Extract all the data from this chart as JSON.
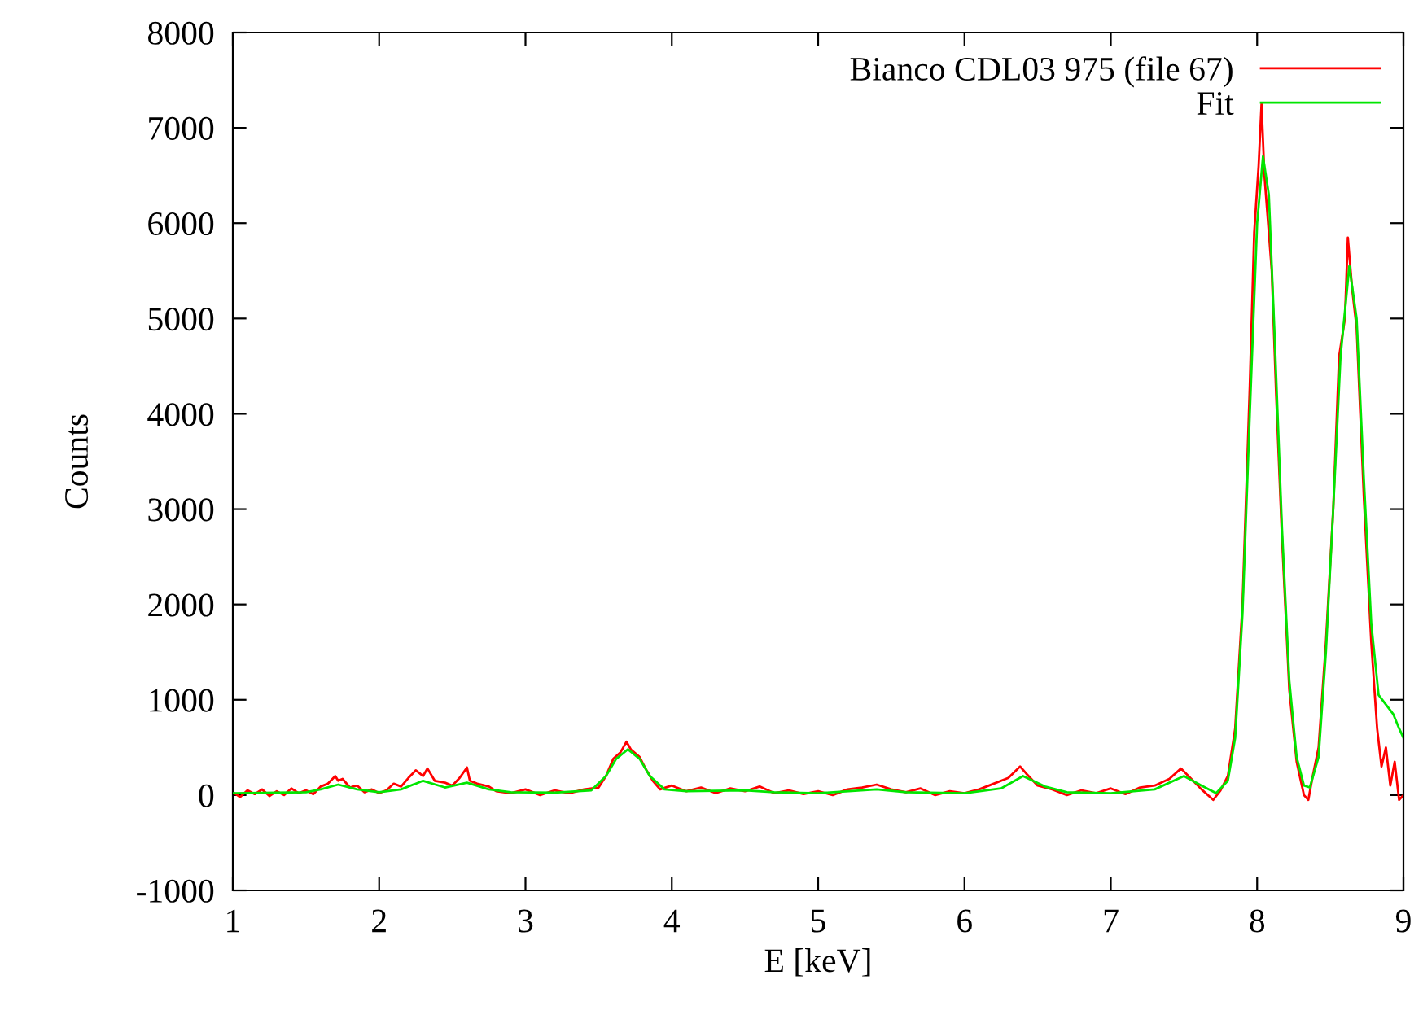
{
  "chart_data": {
    "type": "line",
    "xlabel": "E [keV]",
    "ylabel": "Counts",
    "xlim": [
      1,
      9
    ],
    "ylim": [
      -1000,
      8000
    ],
    "xticks": [
      1,
      2,
      3,
      4,
      5,
      6,
      7,
      8,
      9
    ],
    "yticks": [
      -1000,
      0,
      1000,
      2000,
      3000,
      4000,
      5000,
      6000,
      7000,
      8000
    ],
    "legend": "top right",
    "series": [
      {
        "name": "Bianco CDL03 975 (file 67)",
        "color": "#ff0000",
        "x": [
          1.0,
          1.05,
          1.1,
          1.15,
          1.2,
          1.25,
          1.3,
          1.35,
          1.4,
          1.45,
          1.5,
          1.55,
          1.6,
          1.65,
          1.7,
          1.72,
          1.75,
          1.8,
          1.85,
          1.9,
          1.95,
          2.0,
          2.05,
          2.1,
          2.15,
          2.2,
          2.25,
          2.3,
          2.33,
          2.38,
          2.45,
          2.5,
          2.55,
          2.6,
          2.62,
          2.67,
          2.75,
          2.8,
          2.9,
          3.0,
          3.1,
          3.2,
          3.3,
          3.4,
          3.5,
          3.55,
          3.6,
          3.65,
          3.69,
          3.72,
          3.78,
          3.82,
          3.87,
          3.92,
          4.0,
          4.1,
          4.2,
          4.3,
          4.4,
          4.5,
          4.6,
          4.7,
          4.8,
          4.9,
          5.0,
          5.1,
          5.2,
          5.3,
          5.4,
          5.5,
          5.6,
          5.7,
          5.8,
          5.9,
          6.0,
          6.1,
          6.2,
          6.3,
          6.38,
          6.42,
          6.5,
          6.6,
          6.7,
          6.8,
          6.9,
          7.0,
          7.1,
          7.2,
          7.3,
          7.4,
          7.48,
          7.55,
          7.62,
          7.7,
          7.75,
          7.8,
          7.85,
          7.9,
          7.95,
          7.98,
          8.01,
          8.03,
          8.05,
          8.07,
          8.1,
          8.13,
          8.17,
          8.22,
          8.27,
          8.32,
          8.35,
          8.38,
          8.42,
          8.47,
          8.52,
          8.56,
          8.6,
          8.62,
          8.65,
          8.68,
          8.73,
          8.78,
          8.82,
          8.85,
          8.88,
          8.91,
          8.94,
          8.97,
          9.0
        ],
        "values": [
          30,
          -20,
          50,
          10,
          60,
          -10,
          40,
          0,
          70,
          20,
          50,
          10,
          90,
          120,
          200,
          150,
          170,
          80,
          100,
          30,
          60,
          20,
          50,
          120,
          90,
          180,
          260,
          200,
          280,
          150,
          130,
          100,
          180,
          290,
          150,
          120,
          90,
          40,
          20,
          60,
          0,
          50,
          20,
          60,
          80,
          200,
          380,
          450,
          560,
          480,
          400,
          280,
          150,
          60,
          100,
          40,
          80,
          20,
          70,
          40,
          90,
          20,
          50,
          10,
          40,
          0,
          60,
          80,
          110,
          60,
          30,
          70,
          0,
          40,
          20,
          60,
          120,
          180,
          300,
          230,
          100,
          60,
          0,
          50,
          20,
          70,
          10,
          80,
          100,
          170,
          280,
          170,
          60,
          -50,
          50,
          200,
          700,
          2000,
          4300,
          5900,
          6600,
          7250,
          6500,
          6100,
          5500,
          4200,
          2700,
          1100,
          350,
          0,
          -50,
          200,
          500,
          1600,
          3000,
          4600,
          5000,
          5850,
          5300,
          4900,
          3100,
          1600,
          700,
          300,
          500,
          100,
          350,
          -50,
          0
        ]
      },
      {
        "name": "Fit",
        "color": "#00e600",
        "x": [
          1.0,
          1.5,
          1.6,
          1.72,
          1.85,
          2.0,
          2.15,
          2.3,
          2.45,
          2.6,
          2.75,
          2.9,
          3.2,
          3.45,
          3.55,
          3.62,
          3.7,
          3.78,
          3.85,
          3.95,
          4.1,
          4.5,
          4.7,
          5.0,
          5.4,
          5.6,
          6.0,
          6.25,
          6.4,
          6.55,
          6.7,
          7.0,
          7.3,
          7.5,
          7.62,
          7.72,
          7.8,
          7.85,
          7.9,
          7.95,
          8.0,
          8.04,
          8.08,
          8.12,
          8.17,
          8.22,
          8.27,
          8.32,
          8.36,
          8.42,
          8.47,
          8.52,
          8.57,
          8.63,
          8.68,
          8.73,
          8.78,
          8.83,
          8.88,
          8.93,
          8.97,
          9.0
        ],
        "values": [
          20,
          30,
          60,
          110,
          60,
          30,
          60,
          150,
          80,
          130,
          60,
          30,
          25,
          50,
          200,
          380,
          480,
          380,
          200,
          60,
          40,
          50,
          30,
          20,
          60,
          30,
          20,
          70,
          200,
          90,
          30,
          20,
          60,
          200,
          100,
          20,
          150,
          600,
          1900,
          4000,
          6000,
          6700,
          6300,
          4800,
          2800,
          1200,
          400,
          100,
          80,
          400,
          1500,
          3000,
          4600,
          5550,
          5000,
          3300,
          1800,
          1050,
          950,
          850,
          700,
          600
        ]
      }
    ]
  }
}
